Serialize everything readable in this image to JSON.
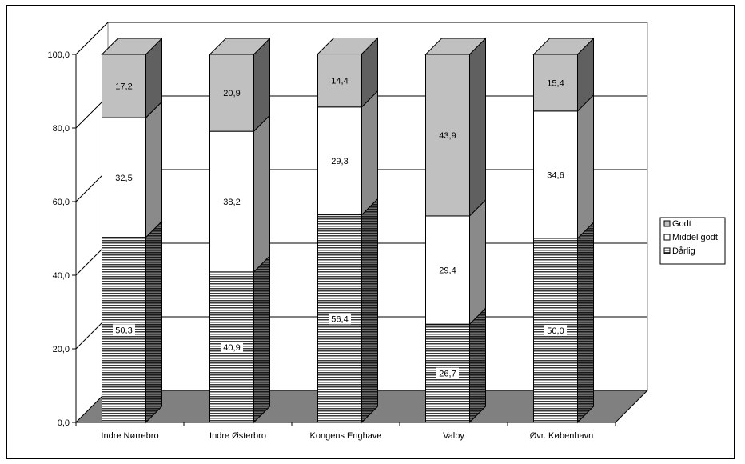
{
  "chart_data": {
    "type": "bar",
    "stacked": true,
    "three_d": true,
    "categories": [
      "Indre Nørrebro",
      "Indre Østerbro",
      "Kongens Enghave",
      "Valby",
      "Øvr. København"
    ],
    "series": [
      {
        "name": "Dårlig",
        "values": [
          50.3,
          40.9,
          56.4,
          26.7,
          50.0
        ],
        "value_labels": [
          "50,3",
          "40,9",
          "56,4",
          "26,7",
          "50,0"
        ],
        "color": "#808080",
        "pattern": "horizontal-lines"
      },
      {
        "name": "Middel godt",
        "values": [
          32.5,
          38.2,
          29.3,
          29.4,
          34.6
        ],
        "value_labels": [
          "32,5",
          "38,2",
          "29,3",
          "29,4",
          "34,6"
        ],
        "color": "#ffffff"
      },
      {
        "name": "Godt",
        "values": [
          17.2,
          20.9,
          14.4,
          43.9,
          15.4
        ],
        "value_labels": [
          "17,2",
          "20,9",
          "14,4",
          "43,9",
          "15,4"
        ],
        "color": "#c0c0c0"
      }
    ],
    "y_ticks": [
      "0,0",
      "20,0",
      "40,0",
      "60,0",
      "80,0",
      "100,0"
    ],
    "ylim": [
      0,
      100
    ],
    "grid": true,
    "legend_position": "right",
    "legend_order": [
      "Godt",
      "Middel godt",
      "Dårlig"
    ],
    "title": "",
    "xlabel": "",
    "ylabel": ""
  }
}
